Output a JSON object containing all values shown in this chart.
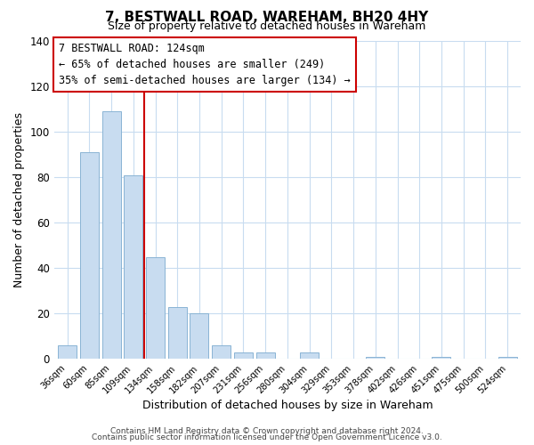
{
  "title": "7, BESTWALL ROAD, WAREHAM, BH20 4HY",
  "subtitle": "Size of property relative to detached houses in Wareham",
  "xlabel": "Distribution of detached houses by size in Wareham",
  "ylabel": "Number of detached properties",
  "bar_labels": [
    "36sqm",
    "60sqm",
    "85sqm",
    "109sqm",
    "134sqm",
    "158sqm",
    "182sqm",
    "207sqm",
    "231sqm",
    "256sqm",
    "280sqm",
    "304sqm",
    "329sqm",
    "353sqm",
    "378sqm",
    "402sqm",
    "426sqm",
    "451sqm",
    "475sqm",
    "500sqm",
    "524sqm"
  ],
  "bar_values": [
    6,
    91,
    109,
    81,
    45,
    23,
    20,
    6,
    3,
    3,
    0,
    3,
    0,
    0,
    1,
    0,
    0,
    1,
    0,
    0,
    1
  ],
  "bar_color": "#c8dcf0",
  "bar_edge_color": "#8ab4d4",
  "vline_x": 3.5,
  "vline_color": "#cc0000",
  "annotation_line1": "7 BESTWALL ROAD: 124sqm",
  "annotation_line2": "← 65% of detached houses are smaller (249)",
  "annotation_line3": "35% of semi-detached houses are larger (134) →",
  "box_edge_color": "#cc0000",
  "ylim": [
    0,
    140
  ],
  "yticks": [
    0,
    20,
    40,
    60,
    80,
    100,
    120,
    140
  ],
  "footer_line1": "Contains HM Land Registry data © Crown copyright and database right 2024.",
  "footer_line2": "Contains public sector information licensed under the Open Government Licence v3.0.",
  "bg_color": "#ffffff",
  "grid_color": "#c8dcf0"
}
